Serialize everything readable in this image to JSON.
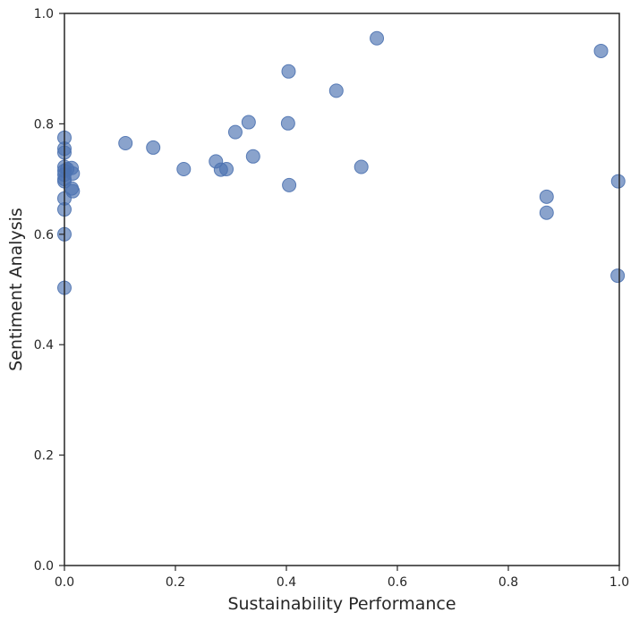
{
  "chart_data": {
    "type": "scatter",
    "title": "",
    "xlabel": "Sustainability Performance",
    "ylabel": "Sentiment Analysis",
    "xlim": [
      0,
      1
    ],
    "ylim": [
      0,
      1
    ],
    "xticks": [
      "0.0",
      "0.2",
      "0.4",
      "0.6",
      "0.8",
      "1.0"
    ],
    "yticks": [
      "0.0",
      "0.2",
      "0.4",
      "0.6",
      "0.8",
      "1.0"
    ],
    "grid": false,
    "color": "#4c72b0",
    "points": [
      {
        "x": 0.0,
        "y": 0.775
      },
      {
        "x": 0.0,
        "y": 0.755
      },
      {
        "x": 0.0,
        "y": 0.748
      },
      {
        "x": 0.0,
        "y": 0.722
      },
      {
        "x": 0.0,
        "y": 0.715
      },
      {
        "x": 0.0,
        "y": 0.708
      },
      {
        "x": 0.0,
        "y": 0.7
      },
      {
        "x": 0.0,
        "y": 0.696
      },
      {
        "x": 0.0,
        "y": 0.665
      },
      {
        "x": 0.0,
        "y": 0.645
      },
      {
        "x": 0.0,
        "y": 0.6
      },
      {
        "x": 0.0,
        "y": 0.503
      },
      {
        "x": 0.005,
        "y": 0.718
      },
      {
        "x": 0.013,
        "y": 0.72
      },
      {
        "x": 0.015,
        "y": 0.71
      },
      {
        "x": 0.013,
        "y": 0.683
      },
      {
        "x": 0.015,
        "y": 0.678
      },
      {
        "x": 0.11,
        "y": 0.765
      },
      {
        "x": 0.16,
        "y": 0.757
      },
      {
        "x": 0.215,
        "y": 0.718
      },
      {
        "x": 0.273,
        "y": 0.732
      },
      {
        "x": 0.282,
        "y": 0.717
      },
      {
        "x": 0.292,
        "y": 0.718
      },
      {
        "x": 0.308,
        "y": 0.785
      },
      {
        "x": 0.332,
        "y": 0.803
      },
      {
        "x": 0.34,
        "y": 0.741
      },
      {
        "x": 0.403,
        "y": 0.801
      },
      {
        "x": 0.404,
        "y": 0.895
      },
      {
        "x": 0.405,
        "y": 0.689
      },
      {
        "x": 0.49,
        "y": 0.86
      },
      {
        "x": 0.535,
        "y": 0.722
      },
      {
        "x": 0.563,
        "y": 0.955
      },
      {
        "x": 0.869,
        "y": 0.668
      },
      {
        "x": 0.869,
        "y": 0.639
      },
      {
        "x": 0.967,
        "y": 0.932
      },
      {
        "x": 0.998,
        "y": 0.696
      },
      {
        "x": 0.997,
        "y": 0.525
      }
    ]
  }
}
